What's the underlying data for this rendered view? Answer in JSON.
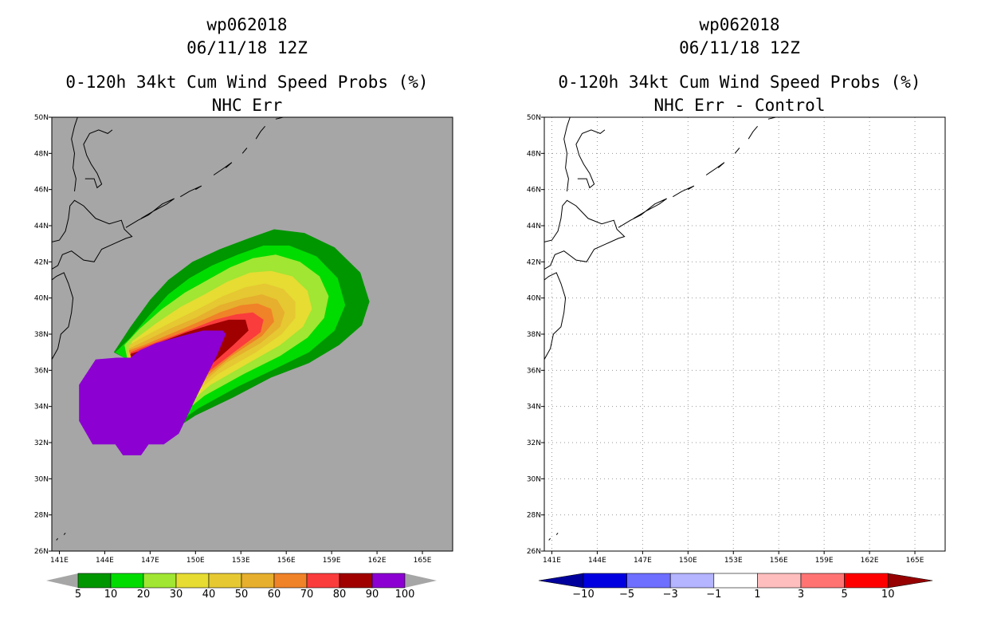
{
  "chart_data": [
    {
      "type": "heatmap",
      "id": "left",
      "title_line1": "wp062018",
      "title_line2": "06/11/18 12Z",
      "title_line3": "0-120h 34kt Cum Wind Speed Probs (%)",
      "title_line4": "NHC Err",
      "xlim": [
        140.5,
        167
      ],
      "ylim": [
        26,
        50
      ],
      "x_ticks": [
        141,
        144,
        147,
        150,
        153,
        156,
        159,
        162,
        165
      ],
      "x_tick_labels": [
        "141E",
        "144E",
        "147E",
        "150E",
        "153E",
        "156E",
        "159E",
        "162E",
        "165E"
      ],
      "y_ticks": [
        26,
        28,
        30,
        32,
        34,
        36,
        38,
        40,
        42,
        44,
        46,
        48,
        50
      ],
      "y_tick_labels": [
        "26N",
        "28N",
        "30N",
        "32N",
        "34N",
        "36N",
        "38N",
        "40N",
        "42N",
        "44N",
        "46N",
        "48N",
        "50N"
      ],
      "background": "#a6a6a6",
      "grid": false,
      "contour_levels": [
        5,
        10,
        20,
        30,
        40,
        50,
        60,
        70,
        80,
        90
      ],
      "contour_colors": [
        "#009600",
        "#00dc00",
        "#a0e632",
        "#e6dc32",
        "#e6c832",
        "#e6af2d",
        "#f08228",
        "#fa3c3c",
        "#a00000",
        "#8c00d2"
      ],
      "colorbar": {
        "labels": [
          "5",
          "10",
          "20",
          "30",
          "40",
          "50",
          "60",
          "70",
          "80",
          "90",
          "100"
        ],
        "colors": [
          "#009600",
          "#00dc00",
          "#a0e632",
          "#e6dc32",
          "#e6c832",
          "#e6af2d",
          "#f08228",
          "#fa3c3c",
          "#a00000",
          "#8c00d2"
        ],
        "end_color": "#a6a6a6"
      }
    },
    {
      "type": "heatmap",
      "id": "right",
      "title_line1": "wp062018",
      "title_line2": "06/11/18 12Z",
      "title_line3": "0-120h 34kt Cum Wind Speed Probs (%)",
      "title_line4": "NHC Err - Control",
      "xlim": [
        140.5,
        167
      ],
      "ylim": [
        26,
        50
      ],
      "x_ticks": [
        141,
        144,
        147,
        150,
        153,
        156,
        159,
        162,
        165
      ],
      "x_tick_labels": [
        "141E",
        "144E",
        "147E",
        "150E",
        "153E",
        "156E",
        "159E",
        "162E",
        "165E"
      ],
      "y_ticks": [
        26,
        28,
        30,
        32,
        34,
        36,
        38,
        40,
        42,
        44,
        46,
        48,
        50
      ],
      "y_tick_labels": [
        "26N",
        "28N",
        "30N",
        "32N",
        "34N",
        "36N",
        "38N",
        "40N",
        "42N",
        "44N",
        "46N",
        "48N",
        "50N"
      ],
      "background": "#ffffff",
      "grid": true,
      "colorbar": {
        "labels": [
          "-10",
          "-5",
          "-3",
          "-1",
          "1",
          "3",
          "5",
          "10"
        ],
        "colors": [
          "#0000e1",
          "#6e6eff",
          "#b4b4ff",
          "#ffffff",
          "#ffbebe",
          "#ff7373",
          "#ff0000"
        ],
        "left_end_color": "#00009c",
        "right_end_color": "#960000"
      }
    }
  ]
}
